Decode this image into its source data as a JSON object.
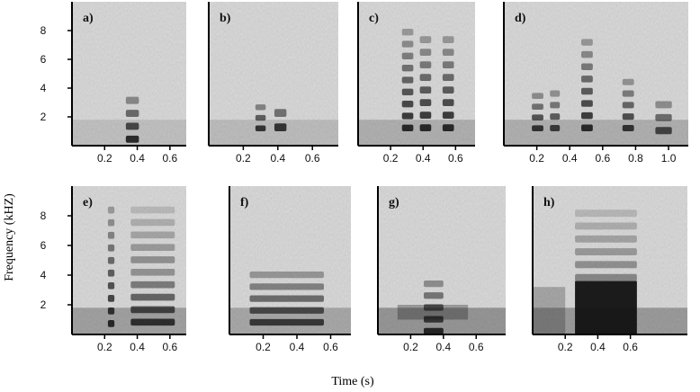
{
  "figure": {
    "ylabel": "Frequency (kHZ)",
    "xlabel": "Time (s)"
  },
  "chart_data": [
    {
      "type": "heatmap",
      "label": "a)",
      "x_ticks": [
        "0.2",
        "0.4",
        "0.6"
      ],
      "y_ticks": [
        "2",
        "4",
        "6",
        "8"
      ],
      "xlim": [
        0,
        0.7
      ],
      "ylim": [
        0,
        10
      ]
    },
    {
      "type": "heatmap",
      "label": "b)",
      "x_ticks": [
        "0.2",
        "0.4",
        "0.6"
      ],
      "y_ticks": [],
      "xlim": [
        0,
        0.75
      ],
      "ylim": [
        0,
        10
      ]
    },
    {
      "type": "heatmap",
      "label": "c)",
      "x_ticks": [
        "0.2",
        "0.4",
        "0.6"
      ],
      "y_ticks": [],
      "xlim": [
        0,
        0.72
      ],
      "ylim": [
        0,
        10
      ]
    },
    {
      "type": "heatmap",
      "label": "d)",
      "x_ticks": [
        "0.2",
        "0.4",
        "0.6",
        "0.8",
        "1.0"
      ],
      "y_ticks": [],
      "xlim": [
        0,
        1.12
      ],
      "ylim": [
        0,
        10
      ]
    },
    {
      "type": "heatmap",
      "label": "e)",
      "x_ticks": [
        "0.2",
        "0.4",
        "0.6"
      ],
      "y_ticks": [
        "2",
        "4",
        "6",
        "8"
      ],
      "xlim": [
        0,
        0.7
      ],
      "ylim": [
        0,
        10
      ]
    },
    {
      "type": "heatmap",
      "label": "f)",
      "x_ticks": [
        "0.2",
        "0.4",
        "0.6"
      ],
      "y_ticks": [],
      "xlim": [
        0,
        0.72
      ],
      "ylim": [
        0,
        10
      ]
    },
    {
      "type": "heatmap",
      "label": "g)",
      "x_ticks": [
        "0.2",
        "0.4",
        "0.6"
      ],
      "y_ticks": [],
      "xlim": [
        0,
        0.78
      ],
      "ylim": [
        0,
        10
      ]
    },
    {
      "type": "heatmap",
      "label": "h)",
      "x_ticks": [
        "0.4",
        "0.6",
        "0.2"
      ],
      "y_ticks": [],
      "xlim": [
        0,
        0.95
      ],
      "ylim": [
        0,
        10
      ]
    }
  ]
}
